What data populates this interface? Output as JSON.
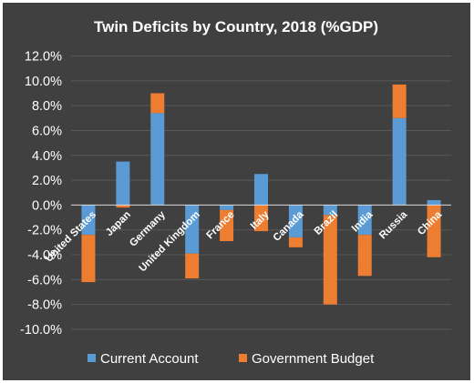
{
  "chart_data": {
    "type": "bar",
    "stacked": true,
    "title": "Twin Deficits by Country, 2018 (%GDP)",
    "xlabel": "",
    "ylabel": "",
    "ylim": [
      -10,
      12
    ],
    "yticks": [
      "12.0%",
      "10.0%",
      "8.0%",
      "6.0%",
      "4.0%",
      "2.0%",
      "0.0%",
      "-2.0%",
      "-4.0%",
      "-6.0%",
      "-8.0%",
      "-10.0%"
    ],
    "grid": true,
    "legend_position": "bottom",
    "categories": [
      "United States",
      "Japan",
      "Germany",
      "United Kingdom",
      "France",
      "Italy",
      "Canada",
      "Brazil",
      "India",
      "Russia",
      "China"
    ],
    "series": [
      {
        "name": "Current Account",
        "color": "#5B9BD5",
        "values": [
          -2.4,
          3.5,
          7.4,
          -3.9,
          -0.4,
          2.5,
          -2.6,
          -0.8,
          -2.4,
          7.0,
          0.4
        ]
      },
      {
        "name": "Government Budget",
        "color": "#ED7D31",
        "values": [
          -3.8,
          -0.2,
          1.6,
          -2.0,
          -2.5,
          -2.1,
          -0.8,
          -7.2,
          -3.3,
          2.7,
          -4.2
        ]
      }
    ],
    "background": "#404040",
    "gridline_color": "#595959"
  }
}
